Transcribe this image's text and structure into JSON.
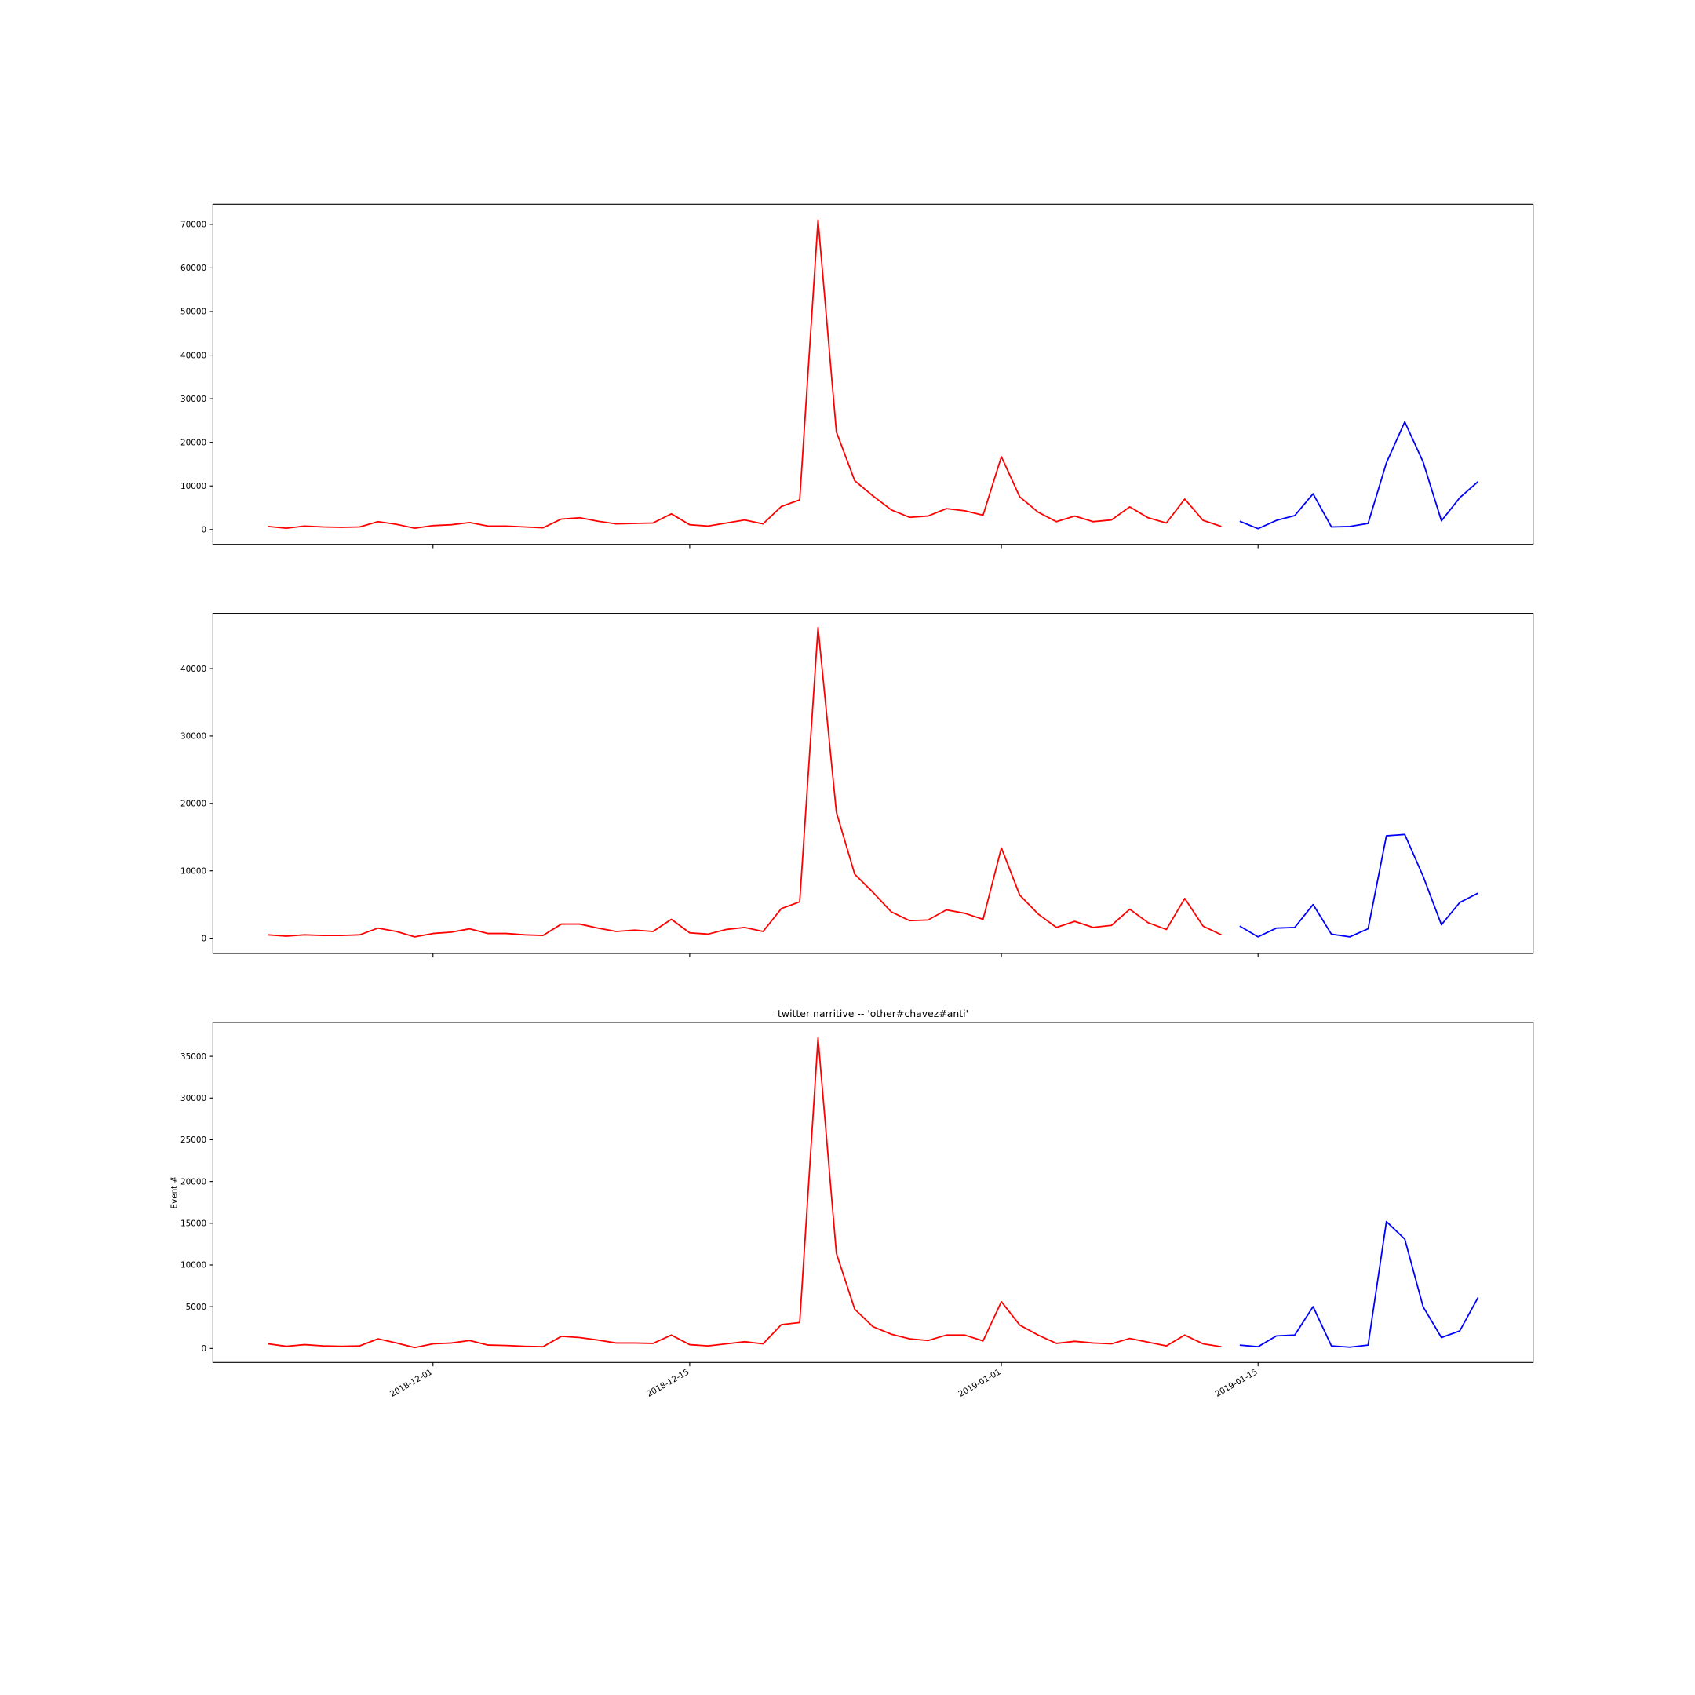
{
  "chart_data": [
    {
      "type": "line",
      "xlim": [
        "2018-11-19",
        "2019-01-30"
      ],
      "xticks": [
        "2018-12-01",
        "2018-12-15",
        "2019-01-01",
        "2019-01-15"
      ],
      "xtick_labels": false,
      "ylim": [
        -3400,
        74600
      ],
      "yticks": [
        0,
        10000,
        20000,
        30000,
        40000,
        50000,
        60000,
        70000
      ],
      "x": [
        "2018-11-22",
        "2018-11-23",
        "2018-11-24",
        "2018-11-25",
        "2018-11-26",
        "2018-11-27",
        "2018-11-28",
        "2018-11-29",
        "2018-11-30",
        "2018-12-01",
        "2018-12-02",
        "2018-12-03",
        "2018-12-04",
        "2018-12-05",
        "2018-12-06",
        "2018-12-07",
        "2018-12-08",
        "2018-12-09",
        "2018-12-10",
        "2018-12-11",
        "2018-12-12",
        "2018-12-13",
        "2018-12-14",
        "2018-12-15",
        "2018-12-16",
        "2018-12-17",
        "2018-12-18",
        "2018-12-19",
        "2018-12-20",
        "2018-12-21",
        "2018-12-22",
        "2018-12-23",
        "2018-12-24",
        "2018-12-25",
        "2018-12-26",
        "2018-12-27",
        "2018-12-28",
        "2018-12-29",
        "2018-12-30",
        "2018-12-31",
        "2019-01-01",
        "2019-01-02",
        "2019-01-03",
        "2019-01-04",
        "2019-01-05",
        "2019-01-06",
        "2019-01-07",
        "2019-01-08",
        "2019-01-09",
        "2019-01-10",
        "2019-01-11",
        "2019-01-12",
        "2019-01-13",
        "2019-01-14",
        "2019-01-15",
        "2019-01-16",
        "2019-01-17",
        "2019-01-18",
        "2019-01-19",
        "2019-01-20",
        "2019-01-21",
        "2019-01-22",
        "2019-01-23",
        "2019-01-24",
        "2019-01-25",
        "2019-01-26",
        "2019-01-27"
      ],
      "series": [
        {
          "color": "#ff0000",
          "values": [
            700,
            300,
            800,
            600,
            500,
            600,
            1800,
            1200,
            300,
            900,
            1100,
            1600,
            800,
            800,
            600,
            400,
            2400,
            2700,
            1900,
            1300,
            1400,
            1500,
            3600,
            1100,
            800,
            1500,
            2200,
            1300,
            5300,
            6800,
            71000,
            22400,
            11200,
            7700,
            4500,
            2800,
            3100,
            4800,
            4300,
            3300,
            16700,
            7500,
            4000,
            1800,
            3100,
            1800,
            2200,
            5200,
            2700,
            1500,
            7000,
            2100,
            700,
            null,
            null,
            null,
            null,
            null,
            null,
            null,
            null,
            null,
            null,
            null,
            null,
            null,
            null
          ]
        },
        {
          "color": "#0000ff",
          "values": [
            null,
            null,
            null,
            null,
            null,
            null,
            null,
            null,
            null,
            null,
            null,
            null,
            null,
            null,
            null,
            null,
            null,
            null,
            null,
            null,
            null,
            null,
            null,
            null,
            null,
            null,
            null,
            null,
            null,
            null,
            null,
            null,
            null,
            null,
            null,
            null,
            null,
            null,
            null,
            null,
            null,
            null,
            null,
            null,
            null,
            null,
            null,
            null,
            null,
            null,
            null,
            null,
            null,
            1900,
            200,
            2100,
            3200,
            8200,
            600,
            700,
            1400,
            15300,
            24700,
            15500,
            2000,
            7300,
            11000
          ]
        }
      ]
    },
    {
      "type": "line",
      "xlim": [
        "2018-11-19",
        "2019-01-30"
      ],
      "xticks": [
        "2018-12-01",
        "2018-12-15",
        "2019-01-01",
        "2019-01-15"
      ],
      "xtick_labels": false,
      "ylim": [
        -2260,
        48200
      ],
      "yticks": [
        0,
        10000,
        20000,
        30000,
        40000
      ],
      "x": [
        "2018-11-22",
        "2018-11-23",
        "2018-11-24",
        "2018-11-25",
        "2018-11-26",
        "2018-11-27",
        "2018-11-28",
        "2018-11-29",
        "2018-11-30",
        "2018-12-01",
        "2018-12-02",
        "2018-12-03",
        "2018-12-04",
        "2018-12-05",
        "2018-12-06",
        "2018-12-07",
        "2018-12-08",
        "2018-12-09",
        "2018-12-10",
        "2018-12-11",
        "2018-12-12",
        "2018-12-13",
        "2018-12-14",
        "2018-12-15",
        "2018-12-16",
        "2018-12-17",
        "2018-12-18",
        "2018-12-19",
        "2018-12-20",
        "2018-12-21",
        "2018-12-22",
        "2018-12-23",
        "2018-12-24",
        "2018-12-25",
        "2018-12-26",
        "2018-12-27",
        "2018-12-28",
        "2018-12-29",
        "2018-12-30",
        "2018-12-31",
        "2019-01-01",
        "2019-01-02",
        "2019-01-03",
        "2019-01-04",
        "2019-01-05",
        "2019-01-06",
        "2019-01-07",
        "2019-01-08",
        "2019-01-09",
        "2019-01-10",
        "2019-01-11",
        "2019-01-12",
        "2019-01-13",
        "2019-01-14",
        "2019-01-15",
        "2019-01-16",
        "2019-01-17",
        "2019-01-18",
        "2019-01-19",
        "2019-01-20",
        "2019-01-21",
        "2019-01-22",
        "2019-01-23",
        "2019-01-24",
        "2019-01-25",
        "2019-01-26",
        "2019-01-27"
      ],
      "series": [
        {
          "color": "#ff0000",
          "values": [
            500,
            300,
            500,
            400,
            400,
            500,
            1500,
            1000,
            200,
            700,
            900,
            1400,
            700,
            700,
            500,
            400,
            2100,
            2100,
            1500,
            1000,
            1200,
            1000,
            2800,
            800,
            600,
            1300,
            1600,
            1000,
            4400,
            5400,
            46100,
            18700,
            9500,
            6800,
            3900,
            2600,
            2700,
            4200,
            3700,
            2800,
            13400,
            6400,
            3600,
            1600,
            2500,
            1600,
            1900,
            4300,
            2300,
            1300,
            5900,
            1800,
            500,
            null,
            null,
            null,
            null,
            null,
            null,
            null,
            null,
            null,
            null,
            null,
            null,
            null,
            null
          ]
        },
        {
          "color": "#0000ff",
          "values": [
            null,
            null,
            null,
            null,
            null,
            null,
            null,
            null,
            null,
            null,
            null,
            null,
            null,
            null,
            null,
            null,
            null,
            null,
            null,
            null,
            null,
            null,
            null,
            null,
            null,
            null,
            null,
            null,
            null,
            null,
            null,
            null,
            null,
            null,
            null,
            null,
            null,
            null,
            null,
            null,
            null,
            null,
            null,
            null,
            null,
            null,
            null,
            null,
            null,
            null,
            null,
            null,
            null,
            1800,
            200,
            1500,
            1600,
            5000,
            600,
            200,
            1400,
            15200,
            15400,
            9200,
            2000,
            5300,
            6700
          ]
        }
      ]
    },
    {
      "type": "line",
      "title": "twitter narritive -- 'other#chavez#anti'",
      "ylabel": "Event #",
      "xlim": [
        "2018-11-19",
        "2019-01-30"
      ],
      "xticks": [
        "2018-12-01",
        "2018-12-15",
        "2019-01-01",
        "2019-01-15"
      ],
      "xtick_labels": true,
      "ylim": [
        -1690,
        39060
      ],
      "yticks": [
        0,
        5000,
        10000,
        15000,
        20000,
        25000,
        30000,
        35000
      ],
      "x": [
        "2018-11-22",
        "2018-11-23",
        "2018-11-24",
        "2018-11-25",
        "2018-11-26",
        "2018-11-27",
        "2018-11-28",
        "2018-11-29",
        "2018-11-30",
        "2018-12-01",
        "2018-12-02",
        "2018-12-03",
        "2018-12-04",
        "2018-12-05",
        "2018-12-06",
        "2018-12-07",
        "2018-12-08",
        "2018-12-09",
        "2018-12-10",
        "2018-12-11",
        "2018-12-12",
        "2018-12-13",
        "2018-12-14",
        "2018-12-15",
        "2018-12-16",
        "2018-12-17",
        "2018-12-18",
        "2018-12-19",
        "2018-12-20",
        "2018-12-21",
        "2018-12-22",
        "2018-12-23",
        "2018-12-24",
        "2018-12-25",
        "2018-12-26",
        "2018-12-27",
        "2018-12-28",
        "2018-12-29",
        "2018-12-30",
        "2018-12-31",
        "2019-01-01",
        "2019-01-02",
        "2019-01-03",
        "2019-01-04",
        "2019-01-05",
        "2019-01-06",
        "2019-01-07",
        "2019-01-08",
        "2019-01-09",
        "2019-01-10",
        "2019-01-11",
        "2019-01-12",
        "2019-01-13",
        "2019-01-14",
        "2019-01-15",
        "2019-01-16",
        "2019-01-17",
        "2019-01-18",
        "2019-01-19",
        "2019-01-20",
        "2019-01-21",
        "2019-01-22",
        "2019-01-23",
        "2019-01-24",
        "2019-01-25",
        "2019-01-26",
        "2019-01-27"
      ],
      "series": [
        {
          "color": "#ff0000",
          "values": [
            550,
            250,
            450,
            300,
            250,
            300,
            1150,
            650,
            100,
            550,
            650,
            950,
            400,
            350,
            250,
            200,
            1450,
            1300,
            1000,
            650,
            650,
            600,
            1600,
            450,
            300,
            550,
            800,
            550,
            2850,
            3100,
            37200,
            11400,
            4700,
            2600,
            1700,
            1150,
            950,
            1600,
            1600,
            900,
            5600,
            2800,
            1600,
            600,
            850,
            650,
            550,
            1200,
            750,
            300,
            1600,
            550,
            200,
            null,
            null,
            null,
            null,
            null,
            null,
            null,
            null,
            null,
            null,
            null,
            null,
            null,
            null
          ]
        },
        {
          "color": "#0000ff",
          "values": [
            null,
            null,
            null,
            null,
            null,
            null,
            null,
            null,
            null,
            null,
            null,
            null,
            null,
            null,
            null,
            null,
            null,
            null,
            null,
            null,
            null,
            null,
            null,
            null,
            null,
            null,
            null,
            null,
            null,
            null,
            null,
            null,
            null,
            null,
            null,
            null,
            null,
            null,
            null,
            null,
            null,
            null,
            null,
            null,
            null,
            null,
            null,
            null,
            null,
            null,
            null,
            null,
            null,
            400,
            200,
            1500,
            1600,
            5000,
            300,
            150,
            400,
            15200,
            13100,
            5000,
            1300,
            2100,
            6100
          ]
        }
      ]
    }
  ]
}
